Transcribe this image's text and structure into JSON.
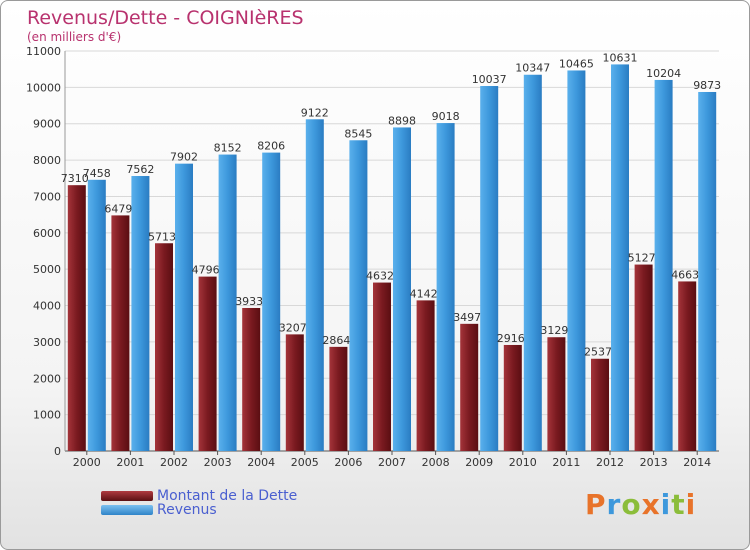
{
  "chart_data": {
    "type": "bar",
    "title": "Revenus/Dette - COIGNIèRES",
    "subtitle": "(en milliers d'€)",
    "categories": [
      "2000",
      "2001",
      "2002",
      "2003",
      "2004",
      "2005",
      "2006",
      "2007",
      "2008",
      "2009",
      "2010",
      "2011",
      "2012",
      "2013",
      "2014"
    ],
    "series": [
      {
        "name": "Montant de la Dette",
        "color": "#8c1e24",
        "values": [
          7310,
          6479,
          5713,
          4796,
          3933,
          3207,
          2864,
          4632,
          4142,
          3497,
          2916,
          3129,
          2537,
          5127,
          4663
        ],
        "labels": [
          "7310",
          "6479",
          "5713",
          "4796",
          "3933",
          "3207",
          "2864",
          "4632",
          "4142",
          "3497",
          "2916",
          "3129",
          "2537",
          "5127",
          "4663"
        ]
      },
      {
        "name": "Revenus",
        "color": "#3d98dc",
        "values": [
          7458,
          7562,
          7902,
          8152,
          8206,
          9122,
          8545,
          8898,
          9018,
          10037,
          10347,
          10465,
          10631,
          10204,
          9873
        ],
        "labels": [
          "7458",
          "7562",
          "7902",
          "8152",
          "8206",
          "9122",
          "8545",
          "8898",
          "9018",
          "10037",
          "10347",
          "10465",
          "10631",
          "10204",
          "9873"
        ]
      }
    ],
    "ylim": [
      0,
      11000
    ],
    "yticks": [
      "0",
      "1000",
      "2000",
      "3000",
      "4000",
      "5000",
      "6000",
      "7000",
      "8000",
      "9000",
      "10000",
      "11000"
    ],
    "legend": [
      "Montant de la Dette",
      "Revenus"
    ],
    "legend_position": "bottom-left"
  },
  "branding": {
    "logo_text": "Proxiti"
  },
  "colors": {
    "title": "#b8326e",
    "axis_text": "#333333",
    "grid": "#d8d8d8",
    "legend_text": "#4a5fd0",
    "logo": [
      "#e8732a",
      "#3d98dc",
      "#8bbd3a",
      "#e8732a",
      "#3d98dc",
      "#8bbd3a",
      "#e8732a"
    ]
  }
}
